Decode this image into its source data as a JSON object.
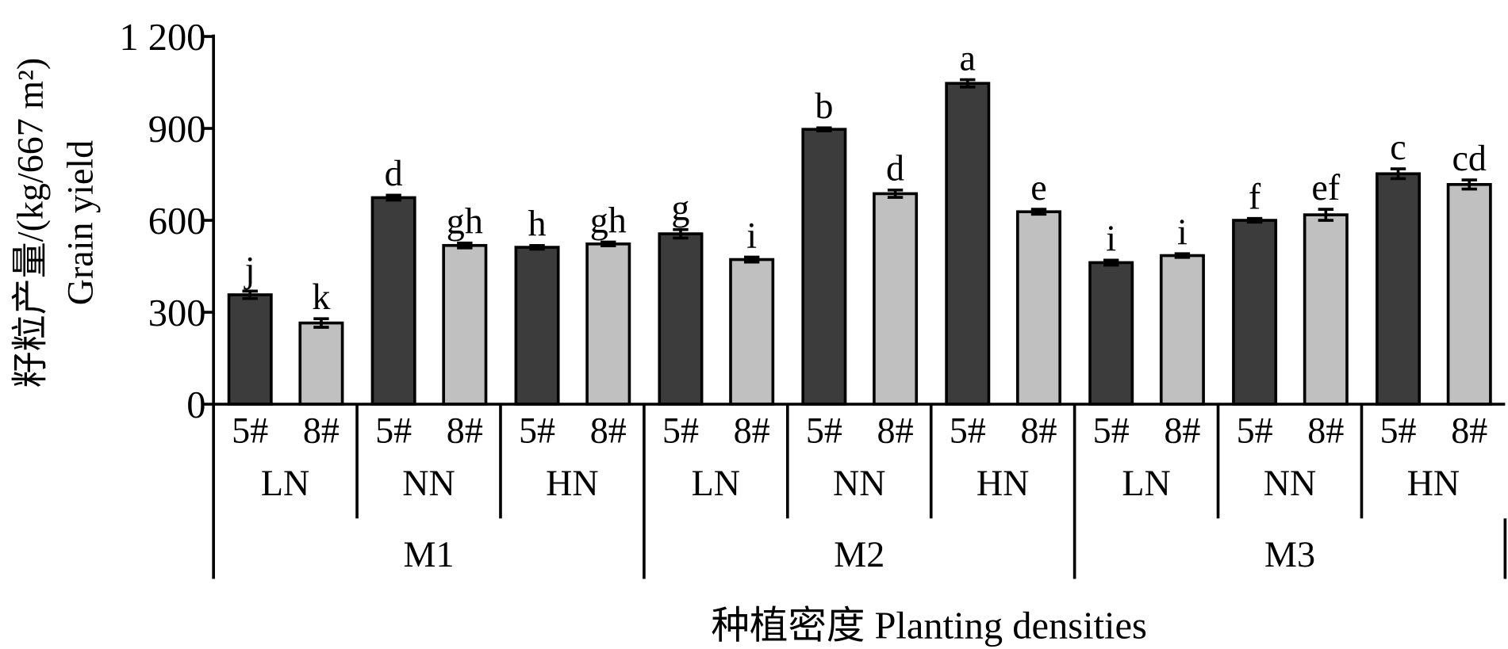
{
  "chart_data": {
    "type": "bar",
    "title": "",
    "ylabel": "籽粒产量/(kg/667 m²)",
    "ylabel_en": "Grain yield",
    "xlabel": "种植密度 Planting densities",
    "ylim": [
      0,
      1200
    ],
    "yticks": [
      0,
      300,
      600,
      900,
      "1 200"
    ],
    "ytick_values": [
      0,
      300,
      600,
      900,
      1200
    ],
    "grid": false,
    "colors": {
      "5#": "#3c3c3c",
      "8#": "#c0c0c0"
    },
    "groups": [
      {
        "m": "M1",
        "n": "LN",
        "bars": [
          {
            "cultivar": "5#",
            "value": 357,
            "error": 12,
            "letter": "j"
          },
          {
            "cultivar": "8#",
            "value": 265,
            "error": 14,
            "letter": "k"
          }
        ]
      },
      {
        "m": "M1",
        "n": "NN",
        "bars": [
          {
            "cultivar": "5#",
            "value": 674,
            "error": 8,
            "letter": "d"
          },
          {
            "cultivar": "8#",
            "value": 518,
            "error": 8,
            "letter": "gh"
          }
        ]
      },
      {
        "m": "M1",
        "n": "HN",
        "bars": [
          {
            "cultivar": "5#",
            "value": 512,
            "error": 6,
            "letter": "h"
          },
          {
            "cultivar": "8#",
            "value": 523,
            "error": 6,
            "letter": "gh"
          }
        ]
      },
      {
        "m": "M2",
        "n": "LN",
        "bars": [
          {
            "cultivar": "5#",
            "value": 556,
            "error": 14,
            "letter": "g"
          },
          {
            "cultivar": "8#",
            "value": 472,
            "error": 8,
            "letter": "i"
          }
        ]
      },
      {
        "m": "M2",
        "n": "NN",
        "bars": [
          {
            "cultivar": "5#",
            "value": 897,
            "error": 5,
            "letter": "b"
          },
          {
            "cultivar": "8#",
            "value": 687,
            "error": 12,
            "letter": "d"
          }
        ]
      },
      {
        "m": "M2",
        "n": "HN",
        "bars": [
          {
            "cultivar": "5#",
            "value": 1047,
            "error": 12,
            "letter": "a"
          },
          {
            "cultivar": "8#",
            "value": 628,
            "error": 8,
            "letter": "e"
          }
        ]
      },
      {
        "m": "M3",
        "n": "LN",
        "bars": [
          {
            "cultivar": "5#",
            "value": 462,
            "error": 8,
            "letter": "i"
          },
          {
            "cultivar": "8#",
            "value": 485,
            "error": 6,
            "letter": "i"
          }
        ]
      },
      {
        "m": "M3",
        "n": "NN",
        "bars": [
          {
            "cultivar": "5#",
            "value": 600,
            "error": 6,
            "letter": "f"
          },
          {
            "cultivar": "8#",
            "value": 618,
            "error": 18,
            "letter": "ef"
          }
        ]
      },
      {
        "m": "M3",
        "n": "HN",
        "bars": [
          {
            "cultivar": "5#",
            "value": 752,
            "error": 16,
            "letter": "c"
          },
          {
            "cultivar": "8#",
            "value": 717,
            "error": 15,
            "letter": "cd"
          }
        ]
      }
    ],
    "m_levels": [
      "M1",
      "M2",
      "M3"
    ]
  }
}
